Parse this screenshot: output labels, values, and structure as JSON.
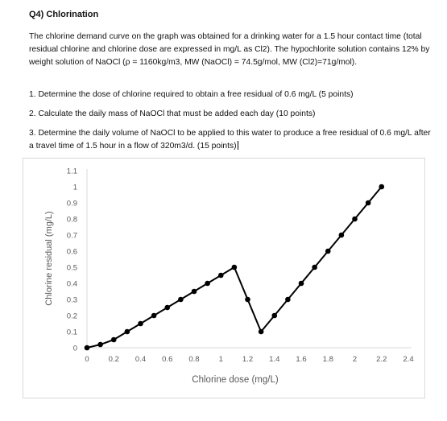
{
  "document": {
    "title": "Q4) Chlorination",
    "intro": "The chlorine demand curve on the graph was obtained for a drinking water for a 1.5 hour contact time (total residual chlorine and chlorine dose are expressed in mg/L as Cl2). The hypochlorite solution contains 12% by weight solution of NaOCl (ρ = 1160kg/m3, MW (NaOCl) = 74.5g/mol, MW (Cl2)=71g/mol).",
    "questions": [
      "1. Determine the dose of chlorine required to obtain a free residual of 0.6 mg/L (5 points)",
      "2. Calculate the daily mass of NaOCl that must be added each day (10 points)",
      "3. Determine the daily volume of NaOCl to be applied to this water to produce a free residual of 0.6 mg/L after a travel time of 1.5 hour in a flow of 320m3/d. (15 points)"
    ]
  },
  "chart_data": {
    "type": "line",
    "xlabel": "Chlorine dose (mg/L)",
    "ylabel": "Chlorine residual (mg/L)",
    "xlim": [
      0,
      2.4
    ],
    "ylim": [
      0,
      1.1
    ],
    "x_ticks": [
      "0",
      "0.2",
      "0.4",
      "0.6",
      "0.8",
      "1",
      "1.2",
      "1.4",
      "1.6",
      "1.8",
      "2",
      "2.2",
      "2.4"
    ],
    "y_ticks": [
      "0",
      "0.1",
      "0.2",
      "0.3",
      "0.4",
      "0.5",
      "0.6",
      "0.7",
      "0.8",
      "0.9",
      "1",
      "1.1"
    ],
    "grid": false,
    "series": [
      {
        "color": "#000000",
        "x": [
          0,
          0.1,
          0.2,
          0.3,
          0.4,
          0.5,
          0.6,
          0.7,
          0.8,
          0.9,
          1.0,
          1.1,
          1.2,
          1.3,
          1.4,
          1.5,
          1.6,
          1.7,
          1.8,
          1.9,
          2.0,
          2.1,
          2.2
        ],
        "y": [
          0,
          0.02,
          0.05,
          0.1,
          0.15,
          0.2,
          0.25,
          0.3,
          0.35,
          0.4,
          0.45,
          0.5,
          0.3,
          0.1,
          0.2,
          0.3,
          0.4,
          0.5,
          0.6,
          0.7,
          0.8,
          0.9,
          1.0
        ]
      }
    ]
  }
}
